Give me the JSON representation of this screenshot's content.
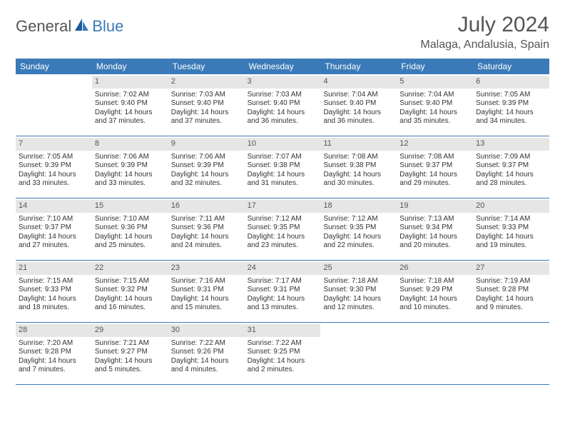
{
  "brand": {
    "general": "General",
    "blue": "Blue",
    "sail_color": "#1a5a9e"
  },
  "title": "July 2024",
  "location": "Malaga, Andalusia, Spain",
  "colors": {
    "header_bg": "#3b7ab8",
    "daynum_bg": "#e6e6e6",
    "border": "#3b7ab8",
    "text": "#333333",
    "muted": "#555555",
    "background": "#ffffff"
  },
  "typography": {
    "title_fontsize": 30,
    "location_fontsize": 16,
    "dayhead_fontsize": 12,
    "cell_fontsize": 10
  },
  "day_headers": [
    "Sunday",
    "Monday",
    "Tuesday",
    "Wednesday",
    "Thursday",
    "Friday",
    "Saturday"
  ],
  "weeks": [
    [
      null,
      {
        "n": "1",
        "sr": "Sunrise: 7:02 AM",
        "ss": "Sunset: 9:40 PM",
        "d1": "Daylight: 14 hours",
        "d2": "and 37 minutes."
      },
      {
        "n": "2",
        "sr": "Sunrise: 7:03 AM",
        "ss": "Sunset: 9:40 PM",
        "d1": "Daylight: 14 hours",
        "d2": "and 37 minutes."
      },
      {
        "n": "3",
        "sr": "Sunrise: 7:03 AM",
        "ss": "Sunset: 9:40 PM",
        "d1": "Daylight: 14 hours",
        "d2": "and 36 minutes."
      },
      {
        "n": "4",
        "sr": "Sunrise: 7:04 AM",
        "ss": "Sunset: 9:40 PM",
        "d1": "Daylight: 14 hours",
        "d2": "and 36 minutes."
      },
      {
        "n": "5",
        "sr": "Sunrise: 7:04 AM",
        "ss": "Sunset: 9:40 PM",
        "d1": "Daylight: 14 hours",
        "d2": "and 35 minutes."
      },
      {
        "n": "6",
        "sr": "Sunrise: 7:05 AM",
        "ss": "Sunset: 9:39 PM",
        "d1": "Daylight: 14 hours",
        "d2": "and 34 minutes."
      }
    ],
    [
      {
        "n": "7",
        "sr": "Sunrise: 7:05 AM",
        "ss": "Sunset: 9:39 PM",
        "d1": "Daylight: 14 hours",
        "d2": "and 33 minutes."
      },
      {
        "n": "8",
        "sr": "Sunrise: 7:06 AM",
        "ss": "Sunset: 9:39 PM",
        "d1": "Daylight: 14 hours",
        "d2": "and 33 minutes."
      },
      {
        "n": "9",
        "sr": "Sunrise: 7:06 AM",
        "ss": "Sunset: 9:39 PM",
        "d1": "Daylight: 14 hours",
        "d2": "and 32 minutes."
      },
      {
        "n": "10",
        "sr": "Sunrise: 7:07 AM",
        "ss": "Sunset: 9:38 PM",
        "d1": "Daylight: 14 hours",
        "d2": "and 31 minutes."
      },
      {
        "n": "11",
        "sr": "Sunrise: 7:08 AM",
        "ss": "Sunset: 9:38 PM",
        "d1": "Daylight: 14 hours",
        "d2": "and 30 minutes."
      },
      {
        "n": "12",
        "sr": "Sunrise: 7:08 AM",
        "ss": "Sunset: 9:37 PM",
        "d1": "Daylight: 14 hours",
        "d2": "and 29 minutes."
      },
      {
        "n": "13",
        "sr": "Sunrise: 7:09 AM",
        "ss": "Sunset: 9:37 PM",
        "d1": "Daylight: 14 hours",
        "d2": "and 28 minutes."
      }
    ],
    [
      {
        "n": "14",
        "sr": "Sunrise: 7:10 AM",
        "ss": "Sunset: 9:37 PM",
        "d1": "Daylight: 14 hours",
        "d2": "and 27 minutes."
      },
      {
        "n": "15",
        "sr": "Sunrise: 7:10 AM",
        "ss": "Sunset: 9:36 PM",
        "d1": "Daylight: 14 hours",
        "d2": "and 25 minutes."
      },
      {
        "n": "16",
        "sr": "Sunrise: 7:11 AM",
        "ss": "Sunset: 9:36 PM",
        "d1": "Daylight: 14 hours",
        "d2": "and 24 minutes."
      },
      {
        "n": "17",
        "sr": "Sunrise: 7:12 AM",
        "ss": "Sunset: 9:35 PM",
        "d1": "Daylight: 14 hours",
        "d2": "and 23 minutes."
      },
      {
        "n": "18",
        "sr": "Sunrise: 7:12 AM",
        "ss": "Sunset: 9:35 PM",
        "d1": "Daylight: 14 hours",
        "d2": "and 22 minutes."
      },
      {
        "n": "19",
        "sr": "Sunrise: 7:13 AM",
        "ss": "Sunset: 9:34 PM",
        "d1": "Daylight: 14 hours",
        "d2": "and 20 minutes."
      },
      {
        "n": "20",
        "sr": "Sunrise: 7:14 AM",
        "ss": "Sunset: 9:33 PM",
        "d1": "Daylight: 14 hours",
        "d2": "and 19 minutes."
      }
    ],
    [
      {
        "n": "21",
        "sr": "Sunrise: 7:15 AM",
        "ss": "Sunset: 9:33 PM",
        "d1": "Daylight: 14 hours",
        "d2": "and 18 minutes."
      },
      {
        "n": "22",
        "sr": "Sunrise: 7:15 AM",
        "ss": "Sunset: 9:32 PM",
        "d1": "Daylight: 14 hours",
        "d2": "and 16 minutes."
      },
      {
        "n": "23",
        "sr": "Sunrise: 7:16 AM",
        "ss": "Sunset: 9:31 PM",
        "d1": "Daylight: 14 hours",
        "d2": "and 15 minutes."
      },
      {
        "n": "24",
        "sr": "Sunrise: 7:17 AM",
        "ss": "Sunset: 9:31 PM",
        "d1": "Daylight: 14 hours",
        "d2": "and 13 minutes."
      },
      {
        "n": "25",
        "sr": "Sunrise: 7:18 AM",
        "ss": "Sunset: 9:30 PM",
        "d1": "Daylight: 14 hours",
        "d2": "and 12 minutes."
      },
      {
        "n": "26",
        "sr": "Sunrise: 7:18 AM",
        "ss": "Sunset: 9:29 PM",
        "d1": "Daylight: 14 hours",
        "d2": "and 10 minutes."
      },
      {
        "n": "27",
        "sr": "Sunrise: 7:19 AM",
        "ss": "Sunset: 9:28 PM",
        "d1": "Daylight: 14 hours",
        "d2": "and 9 minutes."
      }
    ],
    [
      {
        "n": "28",
        "sr": "Sunrise: 7:20 AM",
        "ss": "Sunset: 9:28 PM",
        "d1": "Daylight: 14 hours",
        "d2": "and 7 minutes."
      },
      {
        "n": "29",
        "sr": "Sunrise: 7:21 AM",
        "ss": "Sunset: 9:27 PM",
        "d1": "Daylight: 14 hours",
        "d2": "and 5 minutes."
      },
      {
        "n": "30",
        "sr": "Sunrise: 7:22 AM",
        "ss": "Sunset: 9:26 PM",
        "d1": "Daylight: 14 hours",
        "d2": "and 4 minutes."
      },
      {
        "n": "31",
        "sr": "Sunrise: 7:22 AM",
        "ss": "Sunset: 9:25 PM",
        "d1": "Daylight: 14 hours",
        "d2": "and 2 minutes."
      },
      null,
      null,
      null
    ]
  ]
}
